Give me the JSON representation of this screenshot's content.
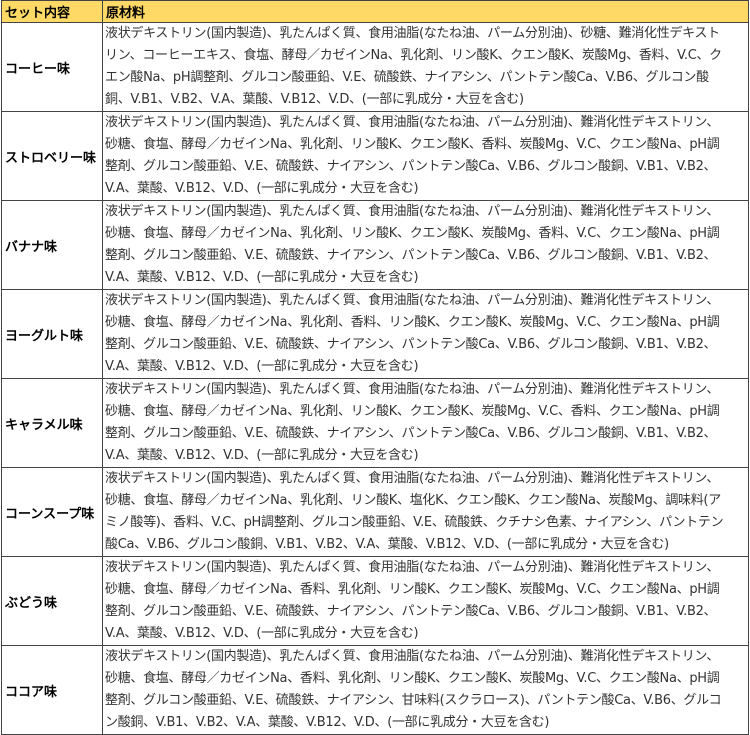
{
  "header": {
    "col1": "セット内容",
    "col2": "原材料",
    "header_color": "#FFD966"
  },
  "rows": [
    {
      "flavor": "コーヒー味",
      "lines": [
        "液状デキストリン(国内製造)、乳たんぱく質、食用油脂(なたね油、パーム分別油)、砂糖、難消化性デキスト",
        "リン、コーヒーエキス、食塩、酵母／カゼインNa、乳化剤、リン酸K、クエン酸K、炭酸Mg、香料、V.C、ク",
        "エン酸Na、pH調整剤、グルコン酸亜鉛、V.E、硫酸鉄、ナイアシン、パントテン酸Ca、V.B6、グルコン酸",
        "銅、V.B1、V.B2、V.A、葉酸、V.B12、V.D、(一部に乳成分・大豆を含む)"
      ]
    },
    {
      "flavor": "ストロベリー味",
      "lines": [
        "液状デキストリン(国内製造)、乳たんぱく質、食用油脂(なたね油、パーム分別油)、難消化性デキストリン、",
        "砂糖、食塩、酵母／カゼインNa、乳化剤、リン酸K、クエン酸K、香料、炭酸Mg、V.C、クエン酸Na、pH調",
        "整剤、グルコン酸亜鉛、V.E、硫酸鉄、ナイアシン、パントテン酸Ca、V.B6、グルコン酸銅、V.B1、V.B2、",
        "V.A、葉酸、V.B12、V.D、(一部に乳成分・大豆を含む)"
      ]
    },
    {
      "flavor": "バナナ味",
      "lines": [
        "液状デキストリン(国内製造)、乳たんぱく質、食用油脂(なたね油、パーム分別油)、難消化性デキストリン、",
        "砂糖、食塩、酵母／カゼインNa、乳化剤、リン酸K、クエン酸K、炭酸Mg、香料、V.C、クエン酸Na、pH調",
        "整剤、グルコン酸亜鉛、V.E、硫酸鉄、ナイアシン、パントテン酸Ca、V.B6、グルコン酸銅、V.B1、V.B2、",
        "V.A、葉酸、V.B12、V.D、(一部に乳成分・大豆を含む)"
      ]
    },
    {
      "flavor": "ヨーグルト味",
      "lines": [
        "液状デキストリン(国内製造)、乳たんぱく質、食用油脂(なたね油、パーム分別油)、難消化性デキストリン、",
        "砂糖、食塩、酵母／カゼインNa、乳化剤、香料、リン酸K、クエン酸K、炭酸Mg、V.C、クエン酸Na、pH調",
        "整剤、グルコン酸亜鉛、V.E、硫酸鉄、ナイアシン、パントテン酸Ca、V.B6、グルコン酸銅、V.B1、V.B2、",
        "V.A、葉酸、V.B12、V.D、(一部に乳成分・大豆を含む)"
      ]
    },
    {
      "flavor": "キャラメル味",
      "lines": [
        "液状デキストリン(国内製造)、乳たんぱく質、食用油脂(なたね油、パーム分別油)、難消化性デキストリン、",
        "砂糖、食塩、酵母／カゼインNa、乳化剤、リン酸K、クエン酸K、炭酸Mg、V.C、香料、クエン酸Na、pH調",
        "整剤、グルコン酸亜鉛、V.E、硫酸鉄、ナイアシン、パントテン酸Ca、V.B6、グルコン酸銅、V.B1、V.B2、",
        "V.A、葉酸、V.B12、V.D、(一部に乳成分・大豆を含む)"
      ]
    },
    {
      "flavor": "コーンスープ味",
      "lines": [
        "液状デキストリン(国内製造)、乳たんぱく質、食用油脂(なたね油、パーム分別油)、難消化性デキストリン、",
        "砂糖、食塩、酵母／カゼインNa、乳化剤、リン酸K、塩化K、クエン酸K、クエン酸Na、炭酸Mg、調味料(ア",
        "ミノ酸等)、香料、V.C、pH調整剤、グルコン酸亜鉛、V.E、硫酸鉄、クチナシ色素、ナイアシン、パントテン",
        "酸Ca、V.B6、グルコン酸銅、V.B1、V.B2、V.A、葉酸、V.B12、V.D、(一部に乳成分・大豆を含む)"
      ]
    },
    {
      "flavor": "ぶどう味",
      "lines": [
        "液状デキストリン(国内製造)、乳たんぱく質、食用油脂(なたね油、パーム分別油)、難消化性デキストリン、",
        "砂糖、食塩、酵母／カゼインNa、香料、乳化剤、リン酸K、クエン酸K、炭酸Mg、V.C、クエン酸Na、pH調",
        "整剤、グルコン酸亜鉛、V.E、硫酸鉄、ナイアシン、パントテン酸Ca、V.B6、グルコン酸銅、V.B1、V.B2、",
        "V.A、葉酸、V.B12、V.D、(一部に乳成分・大豆を含む)"
      ]
    },
    {
      "flavor": "ココア味",
      "lines": [
        "液状デキストリン(国内製造)、乳たんぱく質、食用油脂(なたね油、パーム分別油)、難消化性デキストリン、",
        "砂糖、食塩、酵母／カゼインNa、香料、乳化剤、リン酸K、クエン酸K、炭酸Mg、V.C、クエン酸Na、pH調",
        "整剤、グルコン酸亜鉛、V.E、硫酸鉄、ナイアシン、甘味料(スクラロース)、パントテン酸Ca、V.B6、グルコ",
        "ン酸銅、V.B1、V.B2、V.A、葉酸、V.B12、V.D、(一部に乳成分・大豆を含む)"
      ]
    }
  ]
}
